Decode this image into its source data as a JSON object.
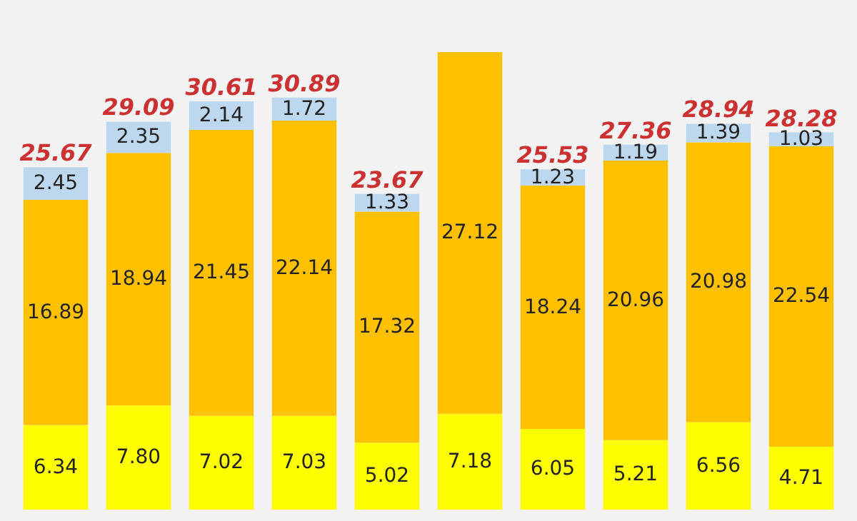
{
  "chart_data": {
    "type": "bar",
    "stacked": true,
    "categories": [
      null,
      null,
      null,
      null,
      null,
      null,
      null,
      null,
      null,
      null
    ],
    "series": [
      {
        "color": "#ffff00",
        "values": [
          6.34,
          7.8,
          7.02,
          7.03,
          5.02,
          7.18,
          6.05,
          5.21,
          6.56,
          4.71
        ],
        "value_labels": [
          "6.34",
          "7.80",
          "7.02",
          "7.03",
          "5.02",
          "7.18",
          "6.05",
          "5.21",
          "6.56",
          "4.71"
        ]
      },
      {
        "color": "#ffc000",
        "values": [
          16.89,
          18.94,
          21.45,
          22.14,
          17.32,
          27.12,
          18.24,
          20.96,
          20.98,
          22.54
        ],
        "value_labels": [
          "16.89",
          "18.94",
          "21.45",
          "22.14",
          "17.32",
          "27.12",
          "18.24",
          "20.96",
          "20.98",
          "22.54"
        ]
      },
      {
        "color": "#bdd7ee",
        "values": [
          2.45,
          2.35,
          2.14,
          1.72,
          1.33,
          null,
          1.23,
          1.19,
          1.39,
          1.03
        ],
        "value_labels": [
          "2.45",
          "2.35",
          "2.14",
          "1.72",
          "1.33",
          null,
          "1.23",
          "1.19",
          "1.39",
          "1.03"
        ]
      }
    ],
    "totals": [
      "25.67",
      "29.09",
      "30.61",
      "30.89",
      "23.67",
      null,
      "25.53",
      "27.36",
      "28.94",
      "28.28"
    ]
  }
}
